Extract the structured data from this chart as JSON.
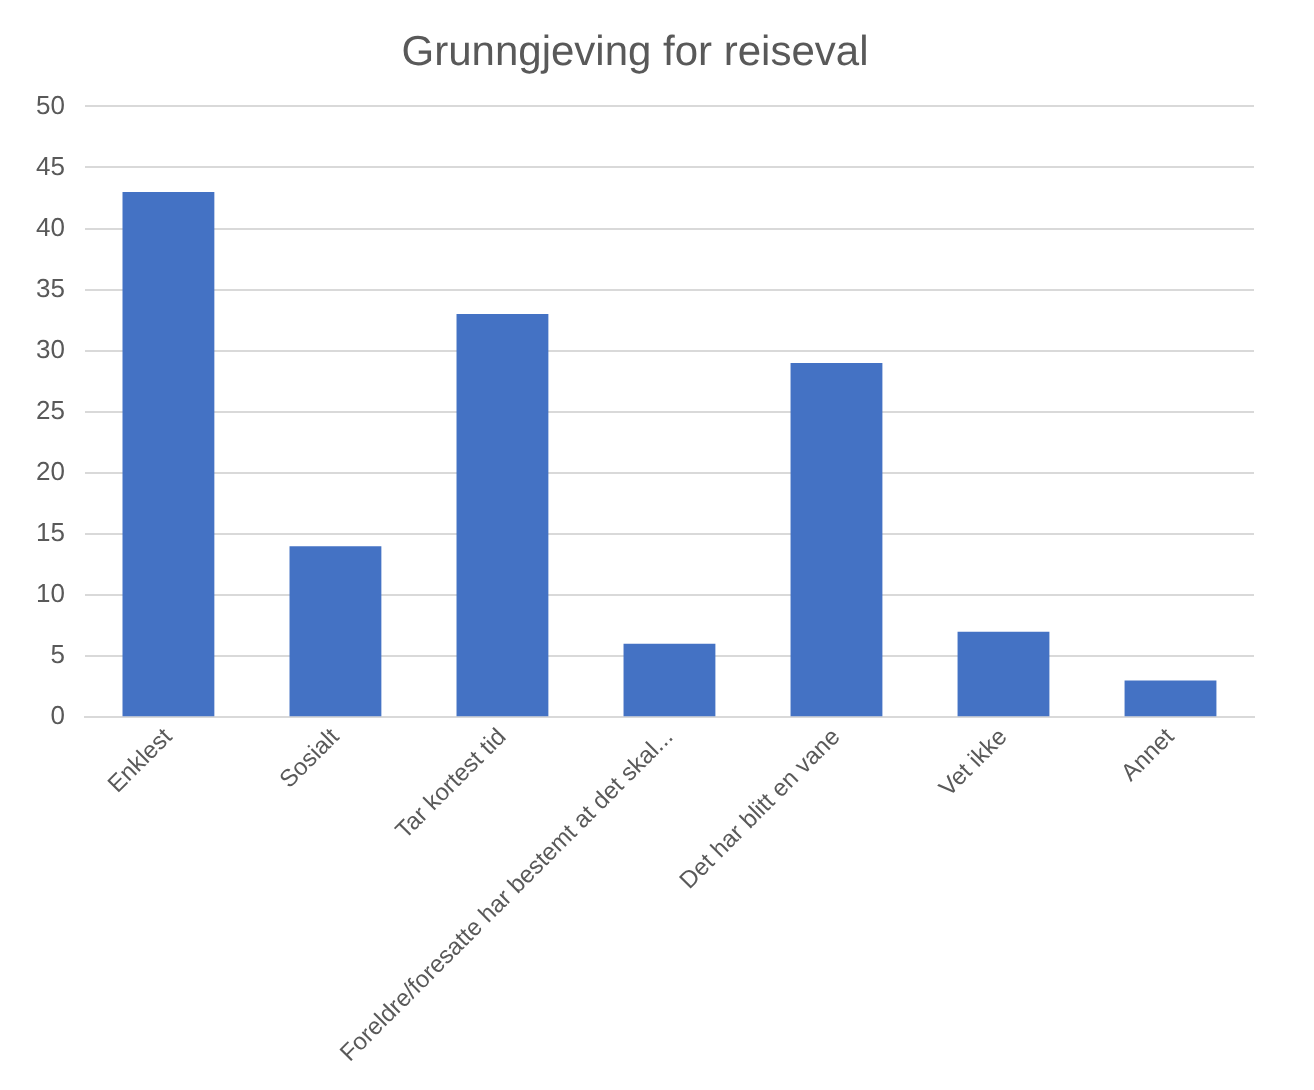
{
  "chart_data": {
    "type": "bar",
    "title": "Grunngjeving for reiseval",
    "categories": [
      "Enklest",
      "Sosialt",
      "Tar kortest tid",
      "Foreldre/foresatte har bestemt at det skal...",
      "Det har blitt en vane",
      "Vet ikke",
      "Annet"
    ],
    "values": [
      43,
      14,
      33,
      6,
      29,
      7,
      3
    ],
    "color": "#4472c4",
    "ylim": [
      0,
      50
    ],
    "yticks": [
      0,
      5,
      10,
      15,
      20,
      25,
      30,
      35,
      40,
      45,
      50
    ],
    "grid": "y",
    "legend": false
  }
}
